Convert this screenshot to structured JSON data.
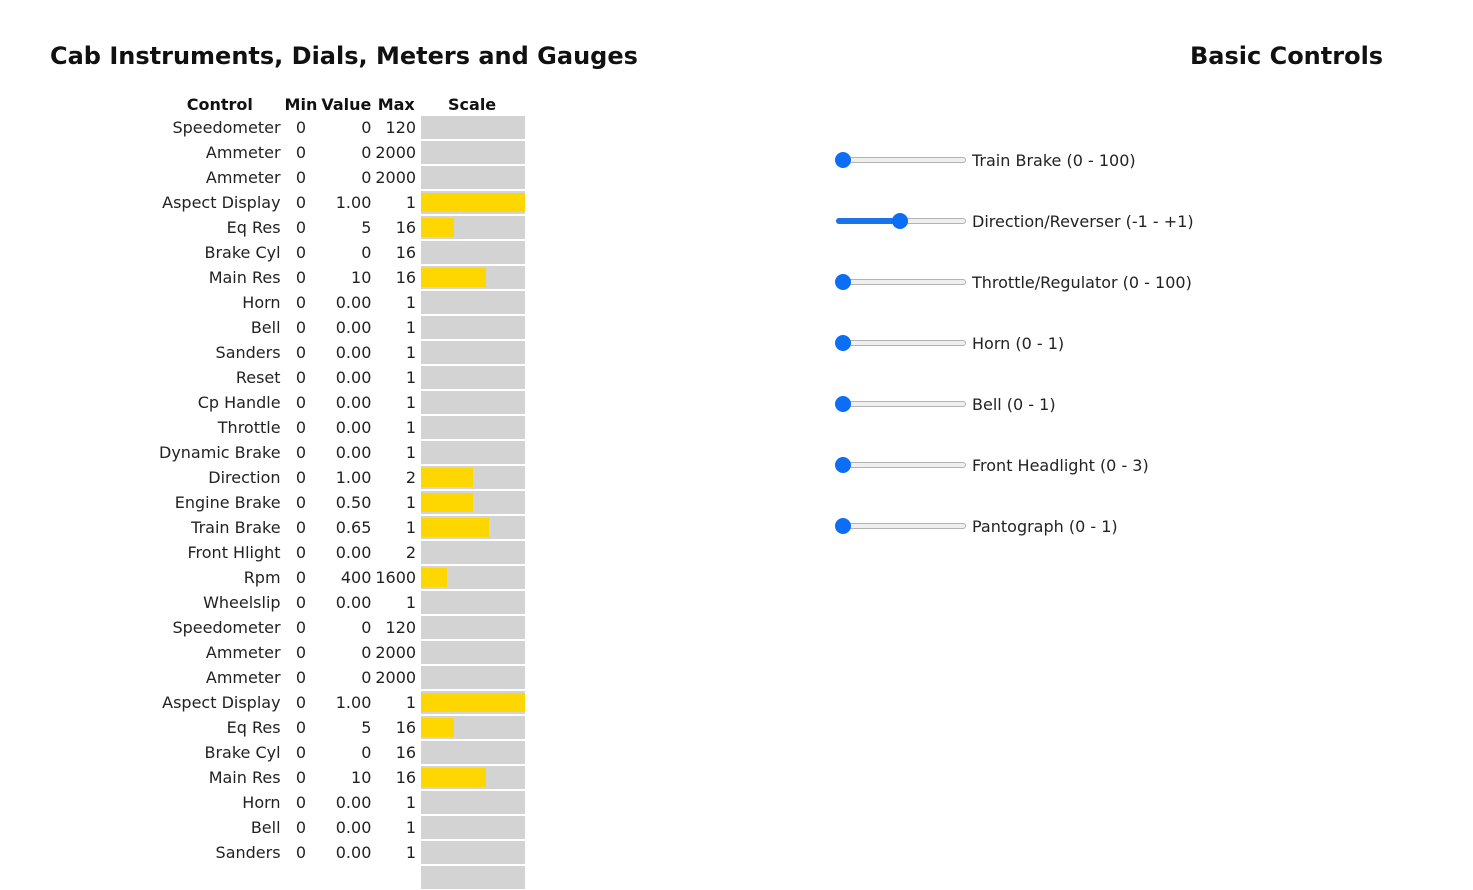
{
  "cab": {
    "title": "Cab Instruments, Dials, Meters and Gauges",
    "headers": {
      "control": "Control",
      "min": "Min",
      "value": "Value",
      "max": "Max",
      "scale": "Scale"
    },
    "rows": [
      {
        "label": "Speedometer",
        "min": "0",
        "value": "0",
        "max": "120",
        "fraction": 0
      },
      {
        "label": "Ammeter",
        "min": "0",
        "value": "0",
        "max": "2000",
        "fraction": 0
      },
      {
        "label": "Ammeter",
        "min": "0",
        "value": "0",
        "max": "2000",
        "fraction": 0
      },
      {
        "label": "Aspect Display",
        "min": "0",
        "value": "1.00",
        "max": "1",
        "fraction": 1
      },
      {
        "label": "Eq Res",
        "min": "0",
        "value": "5",
        "max": "16",
        "fraction": 0.3125
      },
      {
        "label": "Brake Cyl",
        "min": "0",
        "value": "0",
        "max": "16",
        "fraction": 0
      },
      {
        "label": "Main Res",
        "min": "0",
        "value": "10",
        "max": "16",
        "fraction": 0.625
      },
      {
        "label": "Horn",
        "min": "0",
        "value": "0.00",
        "max": "1",
        "fraction": 0
      },
      {
        "label": "Bell",
        "min": "0",
        "value": "0.00",
        "max": "1",
        "fraction": 0
      },
      {
        "label": "Sanders",
        "min": "0",
        "value": "0.00",
        "max": "1",
        "fraction": 0
      },
      {
        "label": "Reset",
        "min": "0",
        "value": "0.00",
        "max": "1",
        "fraction": 0
      },
      {
        "label": "Cp Handle",
        "min": "0",
        "value": "0.00",
        "max": "1",
        "fraction": 0
      },
      {
        "label": "Throttle",
        "min": "0",
        "value": "0.00",
        "max": "1",
        "fraction": 0
      },
      {
        "label": "Dynamic Brake",
        "min": "0",
        "value": "0.00",
        "max": "1",
        "fraction": 0
      },
      {
        "label": "Direction",
        "min": "0",
        "value": "1.00",
        "max": "2",
        "fraction": 0.5
      },
      {
        "label": "Engine Brake",
        "min": "0",
        "value": "0.50",
        "max": "1",
        "fraction": 0.5
      },
      {
        "label": "Train Brake",
        "min": "0",
        "value": "0.65",
        "max": "1",
        "fraction": 0.65
      },
      {
        "label": "Front Hlight",
        "min": "0",
        "value": "0.00",
        "max": "2",
        "fraction": 0
      },
      {
        "label": "Rpm",
        "min": "0",
        "value": "400",
        "max": "1600",
        "fraction": 0.25
      },
      {
        "label": "Wheelslip",
        "min": "0",
        "value": "0.00",
        "max": "1",
        "fraction": 0
      },
      {
        "label": "Speedometer",
        "min": "0",
        "value": "0",
        "max": "120",
        "fraction": 0
      },
      {
        "label": "Ammeter",
        "min": "0",
        "value": "0",
        "max": "2000",
        "fraction": 0
      },
      {
        "label": "Ammeter",
        "min": "0",
        "value": "0",
        "max": "2000",
        "fraction": 0
      },
      {
        "label": "Aspect Display",
        "min": "0",
        "value": "1.00",
        "max": "1",
        "fraction": 1
      },
      {
        "label": "Eq Res",
        "min": "0",
        "value": "5",
        "max": "16",
        "fraction": 0.3125
      },
      {
        "label": "Brake Cyl",
        "min": "0",
        "value": "0",
        "max": "16",
        "fraction": 0
      },
      {
        "label": "Main Res",
        "min": "0",
        "value": "10",
        "max": "16",
        "fraction": 0.625
      },
      {
        "label": "Horn",
        "min": "0",
        "value": "0.00",
        "max": "1",
        "fraction": 0
      },
      {
        "label": "Bell",
        "min": "0",
        "value": "0.00",
        "max": "1",
        "fraction": 0
      },
      {
        "label": "Sanders",
        "min": "0",
        "value": "0.00",
        "max": "1",
        "fraction": 0
      },
      {
        "label": "",
        "min": "",
        "value": "",
        "max": "",
        "fraction": 0
      }
    ]
  },
  "controls": {
    "title": "Basic Controls",
    "sliders": [
      {
        "label": "Train Brake (0 - 100)",
        "min": 0,
        "max": 100,
        "value": 0
      },
      {
        "label": "Direction/Reverser (-1 - +1)",
        "min": -1,
        "max": 1,
        "value": 0
      },
      {
        "label": "Throttle/Regulator (0 - 100)",
        "min": 0,
        "max": 100,
        "value": 0
      },
      {
        "label": "Horn (0 - 1)",
        "min": 0,
        "max": 1,
        "value": 0
      },
      {
        "label": "Bell (0 - 1)",
        "min": 0,
        "max": 1,
        "value": 0
      },
      {
        "label": "Front Headlight (0 - 3)",
        "min": 0,
        "max": 3,
        "value": 0
      },
      {
        "label": "Pantograph (0 - 1)",
        "min": 0,
        "max": 1,
        "value": 0
      }
    ]
  },
  "colors": {
    "bar_fill": "#ffd700",
    "bar_track": "#d3d3d3",
    "slider_accent": "#0b6ef5"
  }
}
